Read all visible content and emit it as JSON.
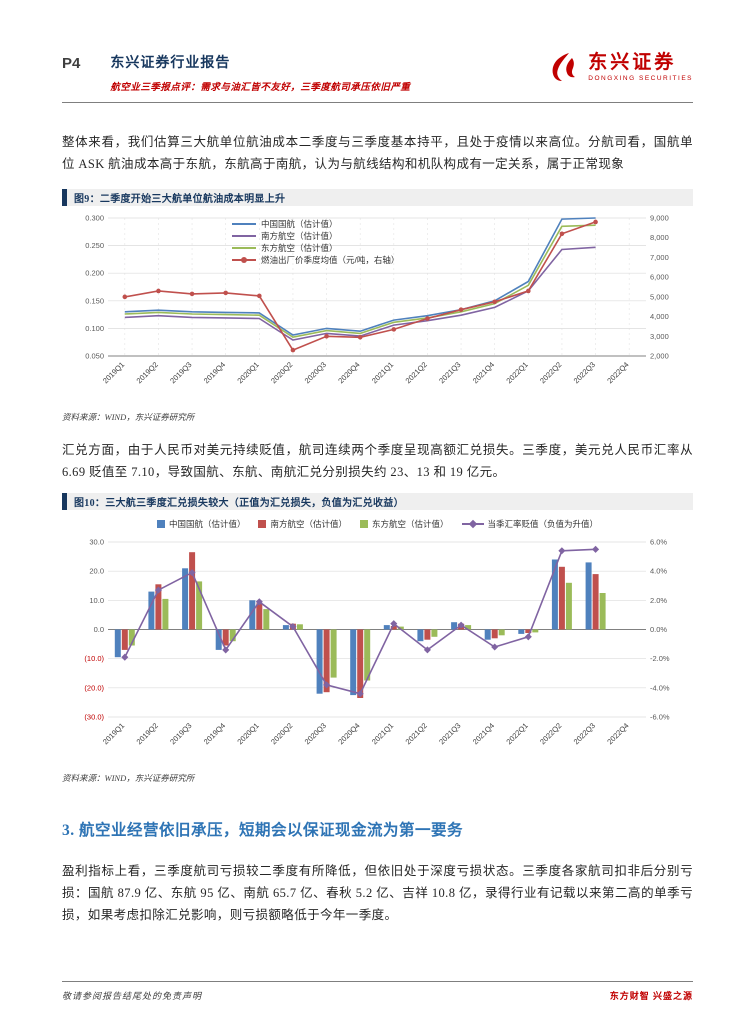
{
  "header": {
    "page_number": "P4",
    "report_type": "东兴证券行业报告",
    "subtitle": "航空业三季报点评：需求与油汇皆不友好，三季度航司承压依旧严重",
    "brand_cn": "东兴证券",
    "brand_en": "DONGXING SECURITIES"
  },
  "colors": {
    "brand_red": "#C00000",
    "dark_blue": "#17375E",
    "heading_blue": "#2E74B5"
  },
  "paragraphs": {
    "p1": "整体来看，我们估算三大航单位航油成本二季度与三季度基本持平，且处于疫情以来高位。分航司看，国航单位 ASK 航油成本高于东航，东航高于南航，认为与航线结构和机队构成有一定关系，属于正常现象",
    "p2": "汇兑方面，由于人民币对美元持续贬值，航司连续两个季度呈现高额汇兑损失。三季度，美元兑人民币汇率从 6.69 贬值至 7.10，导致国航、东航、南航汇兑分别损失约 23、13 和 19 亿元。",
    "p3": "盈利指标上看，三季度航司亏损较二季度有所降低，但依旧处于深度亏损状态。三季度各家航司扣非后分别亏损：国航 87.9 亿、东航 95 亿、南航 65.7 亿、春秋 5.2 亿、吉祥 10.8 亿，录得行业有记载以来第二高的单季亏损，如果考虑扣除汇兑影响，则亏损额略低于今年一季度。"
  },
  "figure9": {
    "title": "图9：二季度开始三大航单位航油成本明显上升",
    "source": "资料来源：WIND，东兴证券研究所"
  },
  "figure10": {
    "title": "图10：三大航三季度汇兑损失较大（正值为汇兑损失，负值为汇兑收益）",
    "source": "资料来源：WIND，东兴证券研究所"
  },
  "section3": {
    "heading": "3. 航空业经营依旧承压，短期会以保证现金流为第一要务"
  },
  "footer": {
    "left": "敬请参阅报告结尾处的免责声明",
    "right": "东方财智 兴盛之源"
  },
  "chart_data": [
    {
      "type": "line",
      "title": "图9：二季度开始三大航单位航油成本明显上升",
      "categories": [
        "2019Q1",
        "2019Q2",
        "2019Q3",
        "2019Q4",
        "2020Q1",
        "2020Q2",
        "2020Q3",
        "2020Q4",
        "2021Q1",
        "2021Q2",
        "2021Q3",
        "2021Q4",
        "2022Q1",
        "2022Q2",
        "2022Q3",
        "2022Q4"
      ],
      "series": [
        {
          "name": "中国国航（估计值）",
          "axis": "left",
          "color": "#4F81BD",
          "values": [
            0.13,
            0.133,
            0.13,
            0.129,
            0.128,
            0.088,
            0.1,
            0.095,
            0.115,
            0.123,
            0.134,
            0.15,
            0.185,
            0.298,
            0.3,
            null
          ]
        },
        {
          "name": "南方航空（估计值）",
          "axis": "left",
          "color": "#8064A2",
          "values": [
            0.12,
            0.123,
            0.12,
            0.119,
            0.118,
            0.079,
            0.091,
            0.086,
            0.106,
            0.114,
            0.124,
            0.138,
            0.168,
            0.243,
            0.247,
            null
          ]
        },
        {
          "name": "东方航空（估计值）",
          "axis": "left",
          "color": "#9BBB59",
          "values": [
            0.126,
            0.129,
            0.126,
            0.125,
            0.124,
            0.084,
            0.096,
            0.091,
            0.111,
            0.119,
            0.13,
            0.145,
            0.178,
            0.285,
            0.287,
            null
          ]
        },
        {
          "name": "燃油出厂价季度均值（元/吨，右轴）",
          "axis": "right",
          "color": "#C0504D",
          "marker": "circle",
          "values": [
            5000,
            5300,
            5150,
            5200,
            5050,
            2300,
            3000,
            2950,
            3350,
            3900,
            4350,
            4750,
            5300,
            8200,
            8800,
            null
          ]
        }
      ],
      "left_axis": {
        "min": 0.05,
        "max": 0.3,
        "tick_values": [
          0.3,
          0.25,
          0.2,
          0.15,
          0.1,
          0.05
        ],
        "tick_labels": [
          "0.300",
          "0.250",
          "0.200",
          "0.150",
          "0.100",
          "0.050"
        ]
      },
      "right_axis": {
        "min": 2000,
        "max": 9000,
        "tick_values": [
          9000,
          8000,
          7000,
          6000,
          5000,
          4000,
          3000,
          2000
        ],
        "tick_labels": [
          "9,000",
          "8,000",
          "7,000",
          "6,000",
          "5,000",
          "4,000",
          "3,000",
          "2,000"
        ]
      },
      "grid": true,
      "legend_position": "top-left-inside"
    },
    {
      "type": "bar",
      "title": "图10：三大航三季度汇兑损失较大（正值为汇兑损失，负值为汇兑收益）",
      "categories": [
        "2019Q1",
        "2019Q2",
        "2019Q3",
        "2019Q4",
        "2020Q1",
        "2020Q2",
        "2020Q3",
        "2020Q4",
        "2021Q1",
        "2021Q2",
        "2021Q3",
        "2021Q4",
        "2022Q1",
        "2022Q2",
        "2022Q3",
        "2022Q4"
      ],
      "bar_series": [
        {
          "name": "中国国航（估计值）",
          "color": "#4F81BD",
          "values": [
            -9.5,
            13.0,
            21.0,
            -7.0,
            10.0,
            1.5,
            -22.0,
            -22.5,
            1.5,
            -4.0,
            2.5,
            -3.5,
            -1.5,
            24.0,
            23.0,
            null
          ]
        },
        {
          "name": "南方航空（估计值）",
          "color": "#C0504D",
          "values": [
            -7.0,
            15.5,
            26.5,
            -5.5,
            9.0,
            2.0,
            -21.5,
            -23.5,
            1.2,
            -3.5,
            2.0,
            -3.0,
            -1.2,
            21.5,
            19.0,
            null
          ]
        },
        {
          "name": "东方航空（估计值）",
          "color": "#9BBB59",
          "values": [
            -5.5,
            10.5,
            16.5,
            -4.0,
            7.0,
            1.8,
            -16.5,
            -17.5,
            1.0,
            -2.5,
            1.5,
            -2.0,
            -1.0,
            16.0,
            12.5,
            null
          ]
        }
      ],
      "line_series": {
        "name": "当季汇率贬值（负值为升值）",
        "color": "#8064A2",
        "axis": "right",
        "marker": "diamond",
        "values": [
          -1.9,
          2.7,
          3.9,
          -1.4,
          1.9,
          0.2,
          -3.8,
          -4.4,
          0.4,
          -1.4,
          0.3,
          -1.2,
          -0.5,
          5.4,
          5.5,
          null
        ]
      },
      "left_axis": {
        "min": -30,
        "max": 30,
        "tick_values": [
          30,
          20,
          10,
          0,
          -10,
          -20,
          -30
        ],
        "tick_labels": [
          "30.0",
          "20.0",
          "10.0",
          "0.0",
          "(10.0)",
          "(20.0)",
          "(30.0)"
        ]
      },
      "right_axis": {
        "min": -6,
        "max": 6,
        "tick_values": [
          6,
          4,
          2,
          0,
          -2,
          -4,
          -6
        ],
        "tick_labels": [
          "6.0%",
          "4.0%",
          "2.0%",
          "0.0%",
          "-2.0%",
          "-4.0%",
          "-6.0%"
        ]
      },
      "grid": true,
      "legend_position": "top"
    }
  ]
}
